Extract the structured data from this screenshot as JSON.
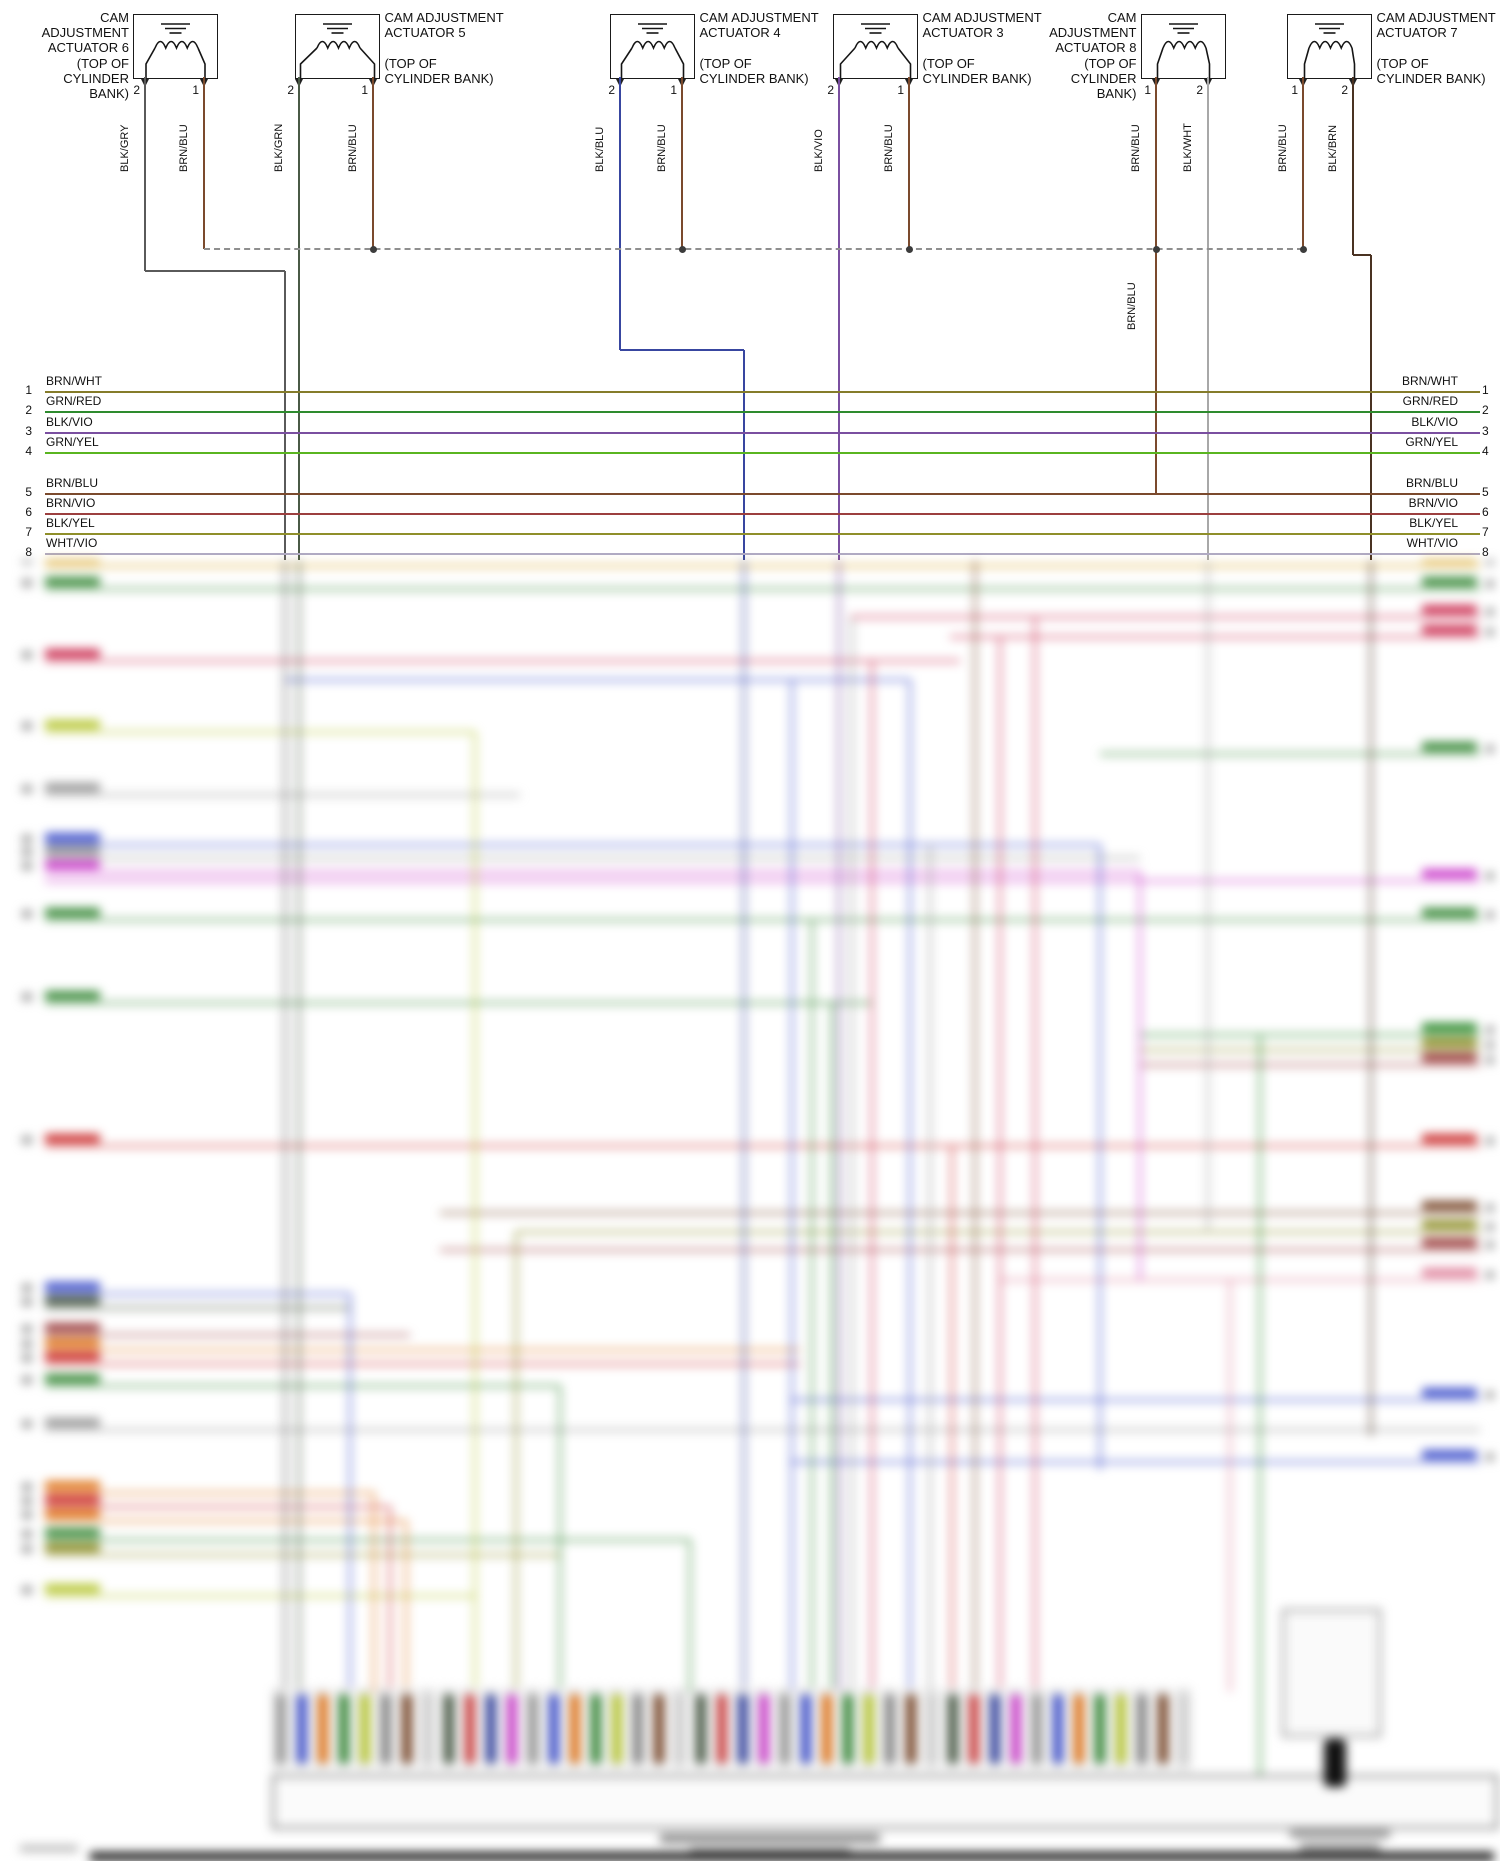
{
  "diagram": {
    "actuators": [
      {
        "id": "actuator-6",
        "name": "CAM ADJUSTMENT ACTUATOR 6",
        "location": "(TOP OF CYLINDER BANK)",
        "pins": [
          {
            "number": "2",
            "wire": "BLK/GRY"
          },
          {
            "number": "1",
            "wire": "BRN/BLU"
          }
        ]
      },
      {
        "id": "actuator-5",
        "name": "CAM ADJUSTMENT ACTUATOR 5",
        "location": "(TOP OF CYLINDER BANK)",
        "pins": [
          {
            "number": "2",
            "wire": "BLK/GRN"
          },
          {
            "number": "1",
            "wire": "BRN/BLU"
          }
        ]
      },
      {
        "id": "actuator-4",
        "name": "CAM ADJUSTMENT ACTUATOR 4",
        "location": "(TOP OF CYLINDER BANK)",
        "pins": [
          {
            "number": "2",
            "wire": "BLK/BLU"
          },
          {
            "number": "1",
            "wire": "BRN/BLU"
          }
        ]
      },
      {
        "id": "actuator-3",
        "name": "CAM ADJUSTMENT ACTUATOR 3",
        "location": "(TOP OF CYLINDER BANK)",
        "pins": [
          {
            "number": "2",
            "wire": "BLK/VIO"
          },
          {
            "number": "1",
            "wire": "BRN/BLU"
          }
        ]
      },
      {
        "id": "actuator-8",
        "name": "CAM ADJUSTMENT ACTUATOR 8",
        "location": "(TOP OF CYLINDER BANK)",
        "pins": [
          {
            "number": "1",
            "wire": "BRN/BLU"
          },
          {
            "number": "2",
            "wire": "BLK/WHT"
          }
        ]
      },
      {
        "id": "actuator-7",
        "name": "CAM ADJUSTMENT ACTUATOR 7",
        "location": "(TOP OF CYLINDER BANK)",
        "pins": [
          {
            "number": "1",
            "wire": "BRN/BLU"
          },
          {
            "number": "2",
            "wire": "BLK/BRN"
          }
        ]
      }
    ],
    "bus_label": "BRN/BLU",
    "rows": [
      {
        "number": "1",
        "label": "BRN/WHT",
        "color": "#857c2a"
      },
      {
        "number": "2",
        "label": "GRN/RED",
        "color": "#2e8b2e"
      },
      {
        "number": "3",
        "label": "BLK/VIO",
        "color": "#7a4fa0"
      },
      {
        "number": "4",
        "label": "GRN/YEL",
        "color": "#5ab520"
      },
      {
        "number": "5",
        "label": "BRN/BLU",
        "color": "#7b4a2d"
      },
      {
        "number": "6",
        "label": "BRN/VIO",
        "color": "#9c3f3f"
      },
      {
        "number": "7",
        "label": "BLK/YEL",
        "color": "#8f8f2a"
      },
      {
        "number": "8",
        "label": "WHT/VIO",
        "color": "#b0aac4"
      }
    ],
    "wire_colors": {
      "BLK/GRY": "#5a5a5a",
      "BRN/BLU": "#7b4a2d",
      "BLK/GRN": "#4a5a46",
      "BLK/BLU": "#3846a0",
      "BLK/VIO": "#7a4fa0",
      "BLK/WHT": "#a8a8a8",
      "BLK/BRN": "#4a3222"
    }
  }
}
